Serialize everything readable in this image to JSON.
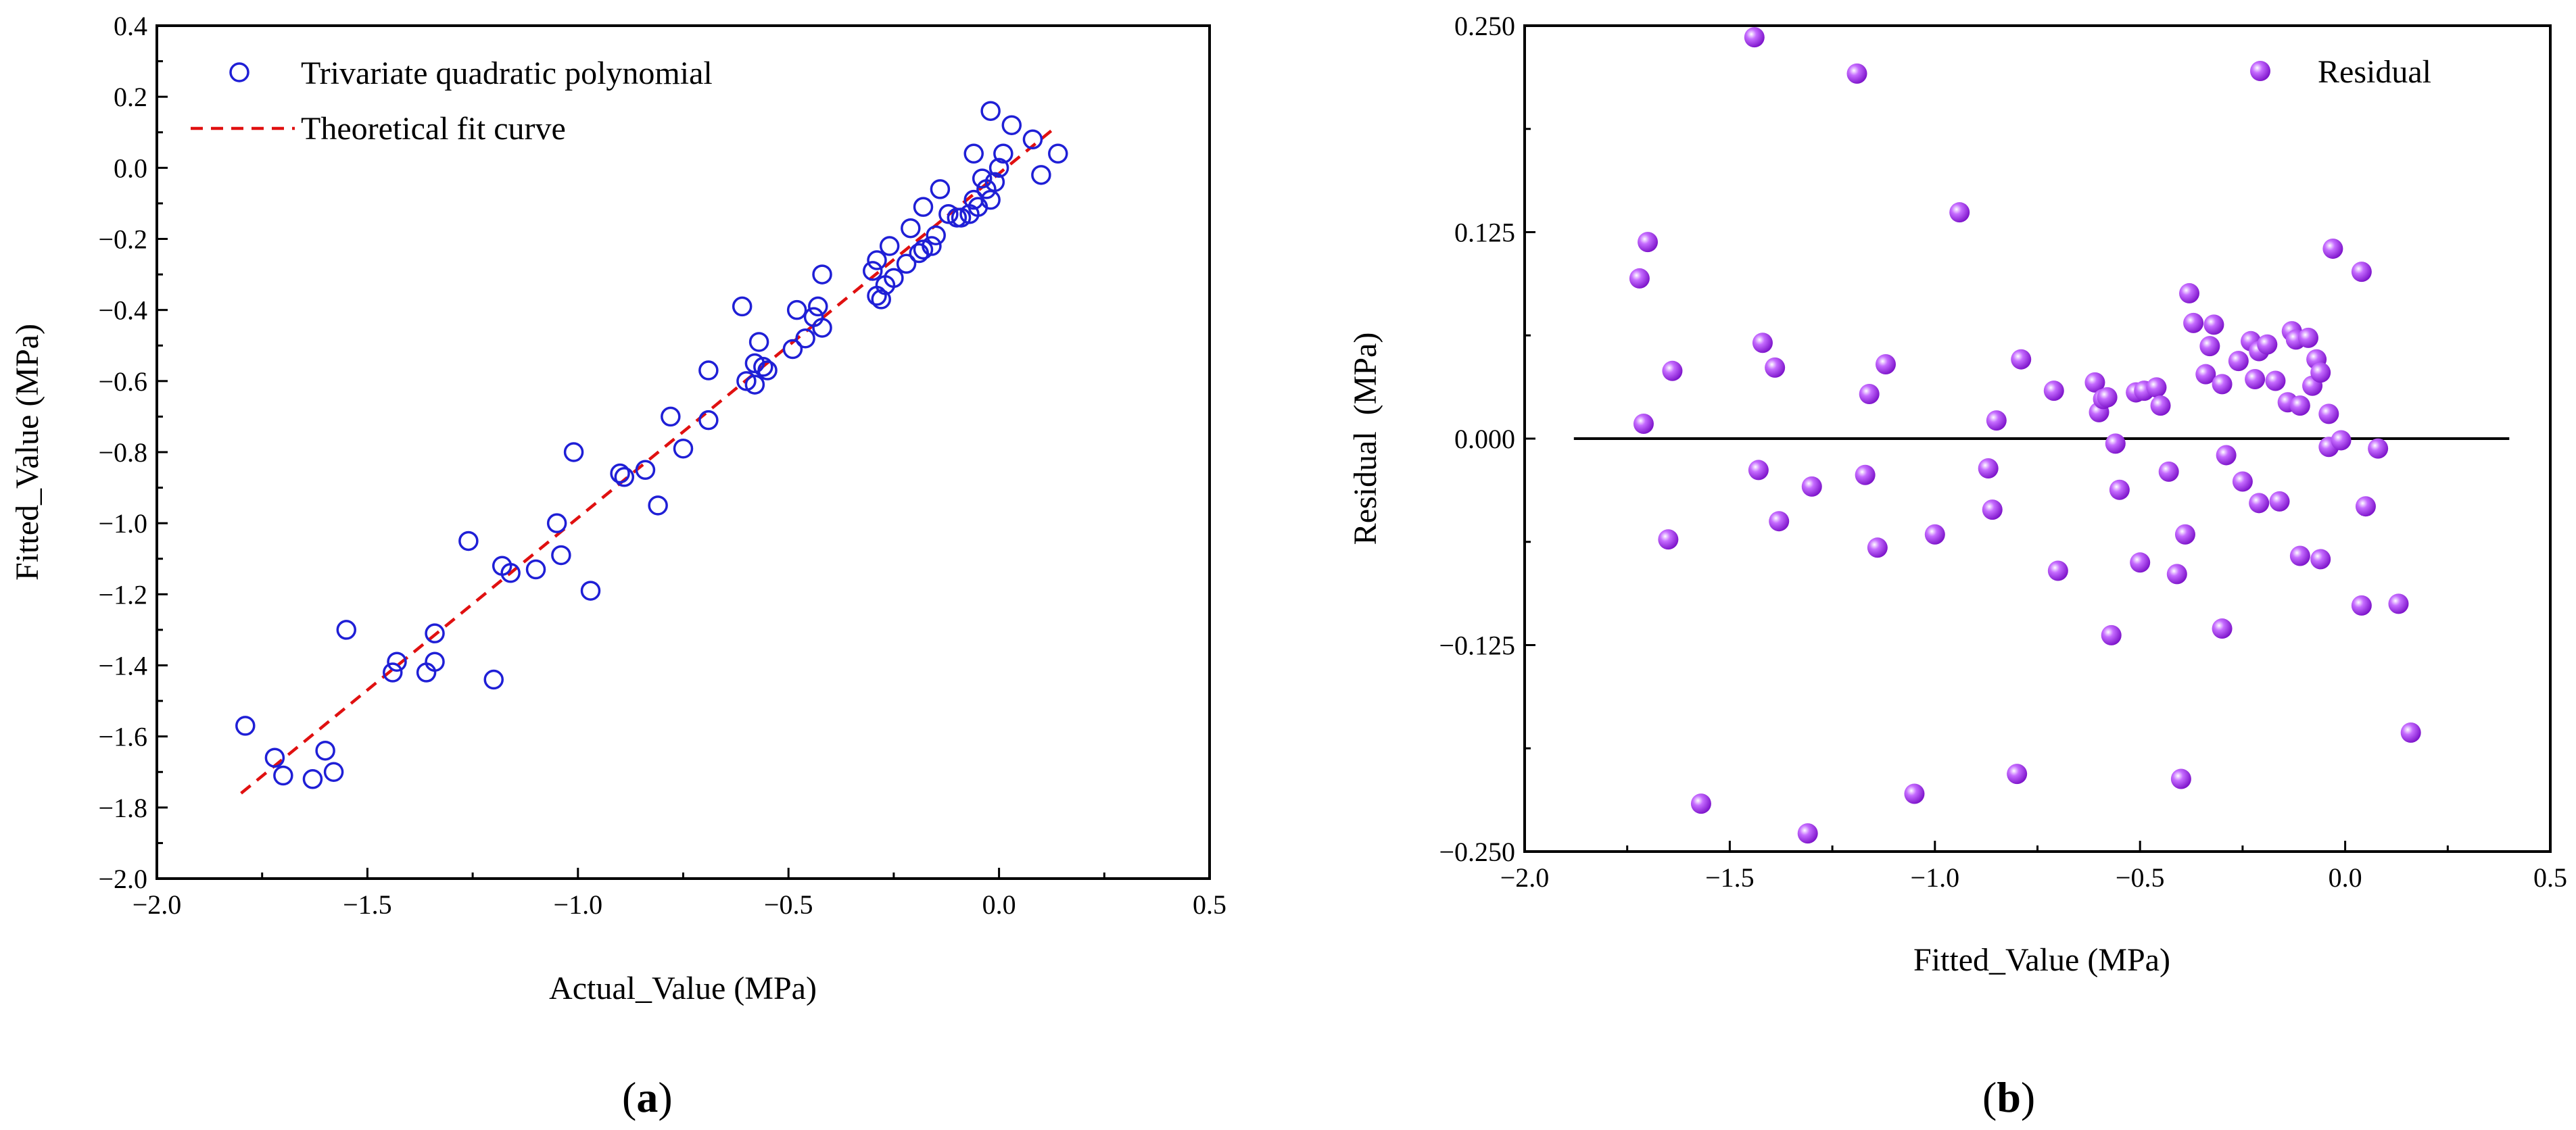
{
  "chart_data": [
    {
      "panel": "a",
      "type": "scatter",
      "xlabel": "Actual_Value (MPa)",
      "ylabel": "Fitted_Value (MPa)",
      "xlim": [
        -2.0,
        0.5
      ],
      "ylim": [
        -2.0,
        0.4
      ],
      "xticks": [
        -2.0,
        -1.5,
        -1.0,
        -0.5,
        0.0,
        0.5
      ],
      "xtick_labels": [
        "−2.0",
        "−1.5",
        "−1.0",
        "−0.5",
        "0.0",
        "0.5"
      ],
      "yticks": [
        -2.0,
        -1.8,
        -1.6,
        -1.4,
        -1.2,
        -1.0,
        -0.8,
        -0.6,
        -0.4,
        -0.2,
        0.0,
        0.2,
        0.4
      ],
      "ytick_labels": [
        "−2.0",
        "−1.8",
        "−1.6",
        "−1.4",
        "−1.2",
        "−1.0",
        "−0.8",
        "−0.6",
        "−0.4",
        "−0.2",
        "0.0",
        "0.2",
        "0.4"
      ],
      "legend": [
        {
          "label": "Trivariate quadratic polynomial",
          "marker": "open-circle",
          "color": "#1f1fd6"
        },
        {
          "label": "Theoretical fit curve",
          "marker": "dashed-line",
          "color": "#e01010"
        }
      ],
      "legend_position": "top-left",
      "series": [
        {
          "name": "Trivariate quadratic polynomial",
          "color": "#1f1fd6",
          "points": [
            [
              -1.79,
              -1.57
            ],
            [
              -1.72,
              -1.66
            ],
            [
              -1.7,
              -1.71
            ],
            [
              -1.63,
              -1.72
            ],
            [
              -1.6,
              -1.64
            ],
            [
              -1.58,
              -1.7
            ],
            [
              -1.55,
              -1.3
            ],
            [
              -1.44,
              -1.42
            ],
            [
              -1.43,
              -1.39
            ],
            [
              -1.36,
              -1.42
            ],
            [
              -1.34,
              -1.39
            ],
            [
              -1.34,
              -1.31
            ],
            [
              -1.26,
              -1.05
            ],
            [
              -1.2,
              -1.44
            ],
            [
              -1.18,
              -1.12
            ],
            [
              -1.16,
              -1.14
            ],
            [
              -1.1,
              -1.13
            ],
            [
              -1.05,
              -1.0
            ],
            [
              -1.04,
              -1.09
            ],
            [
              -1.01,
              -0.8
            ],
            [
              -0.97,
              -1.19
            ],
            [
              -0.9,
              -0.86
            ],
            [
              -0.89,
              -0.87
            ],
            [
              -0.84,
              -0.85
            ],
            [
              -0.81,
              -0.95
            ],
            [
              -0.78,
              -0.7
            ],
            [
              -0.75,
              -0.79
            ],
            [
              -0.69,
              -0.57
            ],
            [
              -0.69,
              -0.71
            ],
            [
              -0.61,
              -0.39
            ],
            [
              -0.6,
              -0.6
            ],
            [
              -0.58,
              -0.55
            ],
            [
              -0.58,
              -0.61
            ],
            [
              -0.57,
              -0.49
            ],
            [
              -0.56,
              -0.56
            ],
            [
              -0.55,
              -0.57
            ],
            [
              -0.49,
              -0.51
            ],
            [
              -0.48,
              -0.4
            ],
            [
              -0.46,
              -0.48
            ],
            [
              -0.44,
              -0.42
            ],
            [
              -0.43,
              -0.39
            ],
            [
              -0.42,
              -0.3
            ],
            [
              -0.42,
              -0.45
            ],
            [
              -0.3,
              -0.29
            ],
            [
              -0.29,
              -0.26
            ],
            [
              -0.29,
              -0.36
            ],
            [
              -0.28,
              -0.37
            ],
            [
              -0.27,
              -0.33
            ],
            [
              -0.26,
              -0.22
            ],
            [
              -0.25,
              -0.31
            ],
            [
              -0.22,
              -0.27
            ],
            [
              -0.21,
              -0.17
            ],
            [
              -0.19,
              -0.24
            ],
            [
              -0.18,
              -0.11
            ],
            [
              -0.18,
              -0.23
            ],
            [
              -0.16,
              -0.22
            ],
            [
              -0.15,
              -0.19
            ],
            [
              -0.14,
              -0.06
            ],
            [
              -0.12,
              -0.13
            ],
            [
              -0.1,
              -0.14
            ],
            [
              -0.09,
              -0.14
            ],
            [
              -0.07,
              -0.13
            ],
            [
              -0.06,
              0.04
            ],
            [
              -0.06,
              -0.09
            ],
            [
              -0.05,
              -0.11
            ],
            [
              -0.04,
              -0.03
            ],
            [
              -0.03,
              -0.06
            ],
            [
              -0.02,
              0.16
            ],
            [
              -0.02,
              -0.09
            ],
            [
              -0.01,
              -0.04
            ],
            [
              0.0,
              0.0
            ],
            [
              0.01,
              0.04
            ],
            [
              0.03,
              0.12
            ],
            [
              0.08,
              0.08
            ],
            [
              0.1,
              -0.02
            ],
            [
              0.14,
              0.04
            ]
          ]
        },
        {
          "name": "Theoretical fit curve",
          "color": "#e01010",
          "line": [
            [
              -1.8,
              -1.76
            ],
            [
              0.13,
              0.11
            ]
          ]
        }
      ]
    },
    {
      "panel": "b",
      "type": "scatter",
      "xlabel": "Fitted_Value (MPa)",
      "ylabel": "Residual  (MPa)",
      "xlim": [
        -2.0,
        0.5
      ],
      "ylim": [
        -0.25,
        0.25
      ],
      "xticks": [
        -2.0,
        -1.5,
        -1.0,
        -0.5,
        0.0,
        0.5
      ],
      "xtick_labels": [
        "−2.0",
        "−1.5",
        "−1.0",
        "−0.5",
        "0.0",
        "0.5"
      ],
      "yticks": [
        -0.25,
        -0.125,
        0.0,
        0.125,
        0.25
      ],
      "ytick_labels": [
        "−0.250",
        "−0.125",
        "0.000",
        "0.125",
        "0.250"
      ],
      "legend": [
        {
          "label": "Residual",
          "marker": "filled-sphere",
          "color": "#9a1fe0"
        }
      ],
      "legend_position": "top-right",
      "zero_line": {
        "x_from": -1.88,
        "x_to": 0.4,
        "y": 0.0
      },
      "series": [
        {
          "name": "Residual",
          "color": "#9a1fe0",
          "points": [
            [
              -1.72,
              0.097
            ],
            [
              -1.71,
              0.009
            ],
            [
              -1.7,
              0.119
            ],
            [
              -1.65,
              -0.061
            ],
            [
              -1.64,
              0.041
            ],
            [
              -1.57,
              -0.221
            ],
            [
              -1.44,
              0.243
            ],
            [
              -1.43,
              -0.019
            ],
            [
              -1.42,
              0.058
            ],
            [
              -1.39,
              0.043
            ],
            [
              -1.38,
              -0.05
            ],
            [
              -1.31,
              -0.239
            ],
            [
              -1.3,
              -0.029
            ],
            [
              -1.19,
              0.221
            ],
            [
              -1.17,
              -0.022
            ],
            [
              -1.16,
              0.027
            ],
            [
              -1.14,
              -0.066
            ],
            [
              -1.12,
              0.045
            ],
            [
              -1.05,
              -0.215
            ],
            [
              -1.0,
              -0.058
            ],
            [
              -0.94,
              0.137
            ],
            [
              -0.87,
              -0.018
            ],
            [
              -0.86,
              -0.043
            ],
            [
              -0.85,
              0.011
            ],
            [
              -0.8,
              -0.203
            ],
            [
              -0.79,
              0.048
            ],
            [
              -0.71,
              0.029
            ],
            [
              -0.7,
              -0.08
            ],
            [
              -0.61,
              0.034
            ],
            [
              -0.6,
              0.016
            ],
            [
              -0.59,
              0.024
            ],
            [
              -0.58,
              0.025
            ],
            [
              -0.57,
              -0.119
            ],
            [
              -0.56,
              -0.003
            ],
            [
              -0.55,
              -0.031
            ],
            [
              -0.51,
              0.028
            ],
            [
              -0.5,
              -0.075
            ],
            [
              -0.49,
              0.029
            ],
            [
              -0.46,
              0.031
            ],
            [
              -0.45,
              0.02
            ],
            [
              -0.43,
              -0.02
            ],
            [
              -0.41,
              -0.082
            ],
            [
              -0.4,
              -0.206
            ],
            [
              -0.39,
              -0.058
            ],
            [
              -0.38,
              0.088
            ],
            [
              -0.37,
              0.07
            ],
            [
              -0.34,
              0.039
            ],
            [
              -0.33,
              0.056
            ],
            [
              -0.32,
              0.069
            ],
            [
              -0.3,
              0.033
            ],
            [
              -0.3,
              -0.115
            ],
            [
              -0.29,
              -0.01
            ],
            [
              -0.26,
              0.047
            ],
            [
              -0.25,
              -0.026
            ],
            [
              -0.23,
              0.059
            ],
            [
              -0.22,
              0.036
            ],
            [
              -0.21,
              -0.039
            ],
            [
              -0.21,
              0.053
            ],
            [
              -0.19,
              0.057
            ],
            [
              -0.17,
              0.035
            ],
            [
              -0.16,
              -0.038
            ],
            [
              -0.14,
              0.022
            ],
            [
              -0.13,
              0.065
            ],
            [
              -0.12,
              0.06
            ],
            [
              -0.11,
              0.02
            ],
            [
              -0.11,
              -0.071
            ],
            [
              -0.09,
              0.061
            ],
            [
              -0.08,
              0.032
            ],
            [
              -0.07,
              0.048
            ],
            [
              -0.06,
              0.04
            ],
            [
              -0.06,
              -0.073
            ],
            [
              -0.04,
              0.015
            ],
            [
              -0.04,
              -0.005
            ],
            [
              -0.03,
              0.115
            ],
            [
              -0.01,
              -0.001
            ],
            [
              0.04,
              0.101
            ],
            [
              0.04,
              -0.101
            ],
            [
              0.05,
              -0.041
            ],
            [
              0.08,
              -0.006
            ],
            [
              0.13,
              -0.1
            ],
            [
              0.16,
              -0.178
            ]
          ]
        }
      ]
    }
  ],
  "panel_labels": {
    "a": {
      "open": "(",
      "letter": "a",
      "close": ")"
    },
    "b": {
      "open": "(",
      "letter": "b",
      "close": ")"
    }
  }
}
